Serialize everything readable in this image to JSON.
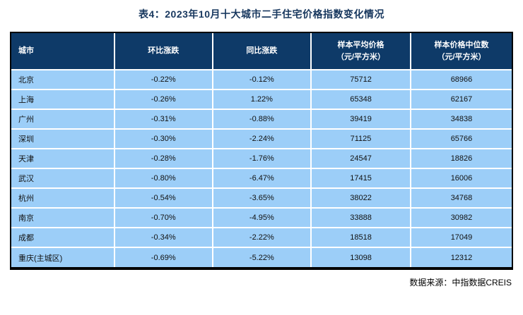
{
  "page": {
    "title": "表4：2023年10月十大城市二手住宅价格指数变化情况",
    "source_note": "数据来源：中指数据CREIS"
  },
  "colors": {
    "title_text": "#17375E",
    "header_bg": "#0E3A68",
    "header_text": "#FFFFFF",
    "row_bg": "#9CCEF8",
    "gridline": "#FFFFFF",
    "outer_border": "#000000"
  },
  "table": {
    "headers": [
      {
        "label": "城市",
        "sub": ""
      },
      {
        "label": "环比涨跌",
        "sub": ""
      },
      {
        "label": "同比涨跌",
        "sub": ""
      },
      {
        "label": "样本平均价格",
        "sub": "（元/平方米）"
      },
      {
        "label": "样本价格中位数",
        "sub": "（元/平方米）"
      }
    ]
  },
  "chart_data": {
    "type": "table",
    "title": "表4：2023年10月十大城市二手住宅价格指数变化情况",
    "columns": [
      "城市",
      "环比涨跌",
      "同比涨跌",
      "样本平均价格（元/平方米）",
      "样本价格中位数（元/平方米）"
    ],
    "rows": [
      [
        "北京",
        "-0.22%",
        "-0.12%",
        75712,
        68966
      ],
      [
        "上海",
        "-0.26%",
        "1.22%",
        65348,
        62167
      ],
      [
        "广州",
        "-0.31%",
        "-0.88%",
        39419,
        34838
      ],
      [
        "深圳",
        "-0.30%",
        "-2.24%",
        71125,
        65766
      ],
      [
        "天津",
        "-0.28%",
        "-1.76%",
        24547,
        18826
      ],
      [
        "武汉",
        "-0.80%",
        "-6.47%",
        17415,
        16006
      ],
      [
        "杭州",
        "-0.54%",
        "-3.65%",
        38022,
        34768
      ],
      [
        "南京",
        "-0.70%",
        "-4.95%",
        33888,
        30982
      ],
      [
        "成都",
        "-0.34%",
        "-2.22%",
        18518,
        17049
      ],
      [
        "重庆(主城区)",
        "-0.69%",
        "-5.22%",
        13098,
        12312
      ]
    ]
  }
}
